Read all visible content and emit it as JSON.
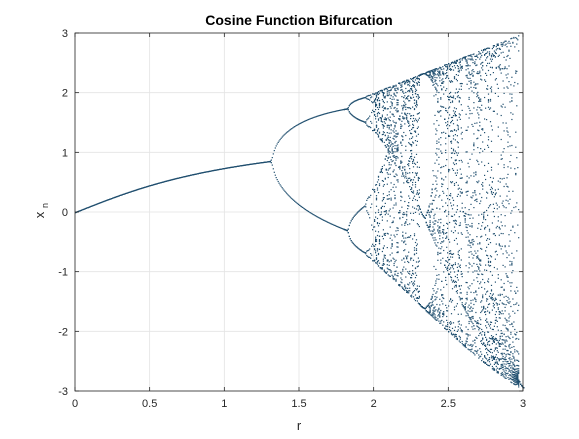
{
  "chart_data": {
    "type": "scatter",
    "title": "Cosine Function Bifurcation",
    "xlabel": "r",
    "ylabel": "x",
    "ylabel_subscript": "n",
    "xlim": [
      0,
      3
    ],
    "ylim": [
      -3,
      3
    ],
    "xticks": [
      0,
      0.5,
      1,
      1.5,
      2,
      2.5,
      3
    ],
    "xtick_labels": [
      "0",
      "0.5",
      "1",
      "1.5",
      "2",
      "2.5",
      "3"
    ],
    "yticks": [
      -3,
      -2,
      -1,
      0,
      1,
      2,
      3
    ],
    "ytick_labels": [
      "-3",
      "-2",
      "-1",
      "0",
      "1",
      "2",
      "3"
    ],
    "grid": true,
    "series": [
      {
        "map": "x_next = r * cos(x_n)",
        "r_range": [
          0,
          3
        ],
        "color": "#1f4e6e",
        "marker": "dot"
      }
    ]
  }
}
